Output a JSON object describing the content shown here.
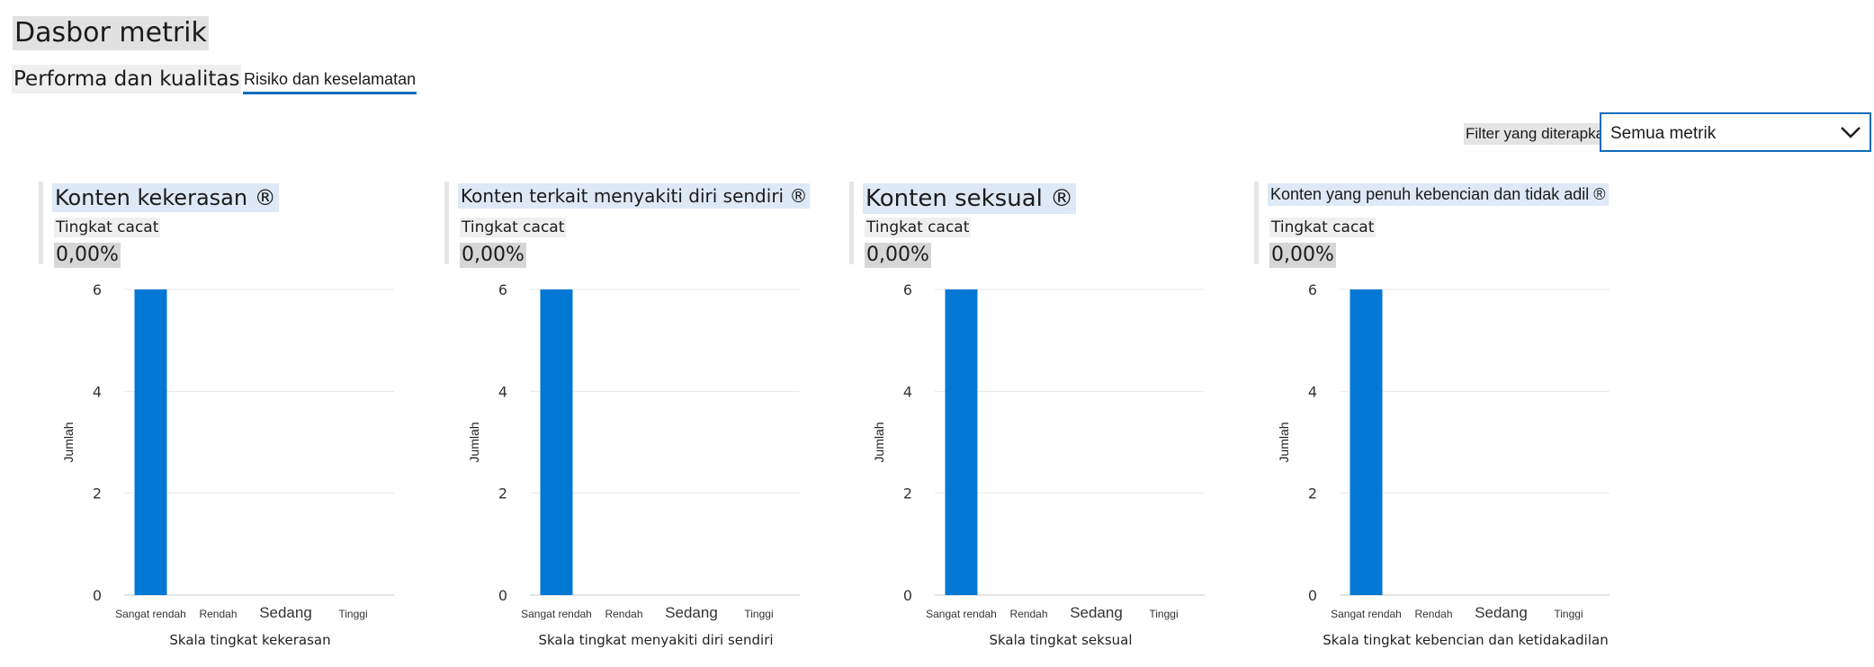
{
  "page": {
    "title": "Dasbor metrik",
    "tabs": [
      {
        "label": "Performa dan kualitas",
        "selected": false
      },
      {
        "label": "Risiko dan keselamatan",
        "selected": true
      }
    ],
    "filter": {
      "label": "Filter yang diterapkan",
      "value": "Semua metrik"
    }
  },
  "colors": {
    "bar": "#0078d4",
    "accent": "#0f6cbd"
  },
  "cards": [
    {
      "title": "Konten kekerasan ®",
      "metric_label": "Tingkat cacat",
      "metric_value": "0,00%"
    },
    {
      "title": "Konten terkait menyakiti diri sendiri ®",
      "metric_label": "Tingkat cacat",
      "metric_value": "0,00%"
    },
    {
      "title": "Konten seksual ®",
      "metric_label": "Tingkat cacat",
      "metric_value": "0,00%"
    },
    {
      "title": "Konten yang penuh kebencian dan tidak adil ®",
      "metric_label": "Tingkat cacat",
      "metric_value": "0,00%"
    }
  ],
  "chart_data": [
    {
      "type": "bar",
      "categories": [
        "Sangat rendah",
        "Rendah",
        "Sedang",
        "Tinggi"
      ],
      "values": [
        6,
        0,
        0,
        0
      ],
      "xlabel": "Skala tingkat kekerasan",
      "ylabel": "Jumlah",
      "ylim": [
        0,
        6
      ],
      "yticks": [
        "0",
        "2",
        "4",
        "6"
      ],
      "grid": true
    },
    {
      "type": "bar",
      "categories": [
        "Sangat rendah",
        "Rendah",
        "Sedang",
        "Tinggi"
      ],
      "values": [
        6,
        0,
        0,
        0
      ],
      "xlabel": "Skala tingkat menyakiti diri sendiri",
      "ylabel": "Jumlah",
      "ylim": [
        0,
        6
      ],
      "yticks": [
        "0",
        "2",
        "4",
        "6"
      ],
      "grid": true
    },
    {
      "type": "bar",
      "categories": [
        "Sangat rendah",
        "Rendah",
        "Sedang",
        "Tinggi"
      ],
      "values": [
        6,
        0,
        0,
        0
      ],
      "xlabel": "Skala tingkat seksual",
      "ylabel": "Jumlah",
      "ylim": [
        0,
        6
      ],
      "yticks": [
        "0",
        "2",
        "4",
        "6"
      ],
      "grid": true
    },
    {
      "type": "bar",
      "categories": [
        "Sangat rendah",
        "Rendah",
        "Sedang",
        "Tinggi"
      ],
      "values": [
        6,
        0,
        0,
        0
      ],
      "xlabel": "Skala tingkat kebencian dan ketidakadilan",
      "ylabel": "Jumlah",
      "ylim": [
        0,
        6
      ],
      "yticks": [
        "0",
        "2",
        "4",
        "6"
      ],
      "grid": true
    }
  ]
}
